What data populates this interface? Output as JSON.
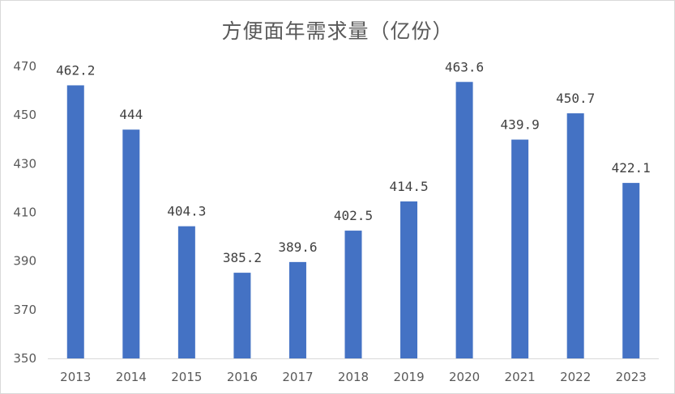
{
  "chart_data": {
    "type": "bar",
    "title": "方便面年需求量（亿份）",
    "categories": [
      "2013",
      "2014",
      "2015",
      "2016",
      "2017",
      "2018",
      "2019",
      "2020",
      "2021",
      "2022",
      "2023"
    ],
    "values": [
      462.2,
      444,
      404.3,
      385.2,
      389.6,
      402.5,
      414.5,
      463.6,
      439.9,
      450.7,
      422.1
    ],
    "value_labels": [
      "462.2",
      "444",
      "404.3",
      "385.2",
      "389.6",
      "402.5",
      "414.5",
      "463.6",
      "439.9",
      "450.7",
      "422.1"
    ],
    "y_ticks": [
      350,
      370,
      390,
      410,
      430,
      450,
      470
    ],
    "ylim": [
      350,
      470
    ],
    "xlabel": "",
    "ylabel": "",
    "grid": false,
    "legend": "none",
    "bar_color": "#4472c4",
    "axis_color": "#d9d9d9"
  }
}
